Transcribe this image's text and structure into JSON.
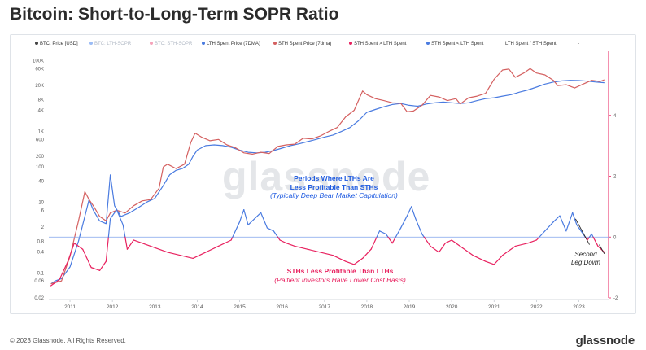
{
  "header": {
    "title": "Bitcoin: Short-to-Long-Term SOPR Ratio"
  },
  "legend": [
    {
      "label": "BTC: Price [USD]",
      "color": "#444444",
      "active": true
    },
    {
      "label": "BTC: LTH-SOPR",
      "color": "#9bbcf5",
      "active": false
    },
    {
      "label": "BTC: STH-SOPR",
      "color": "#f5a3ba",
      "active": false
    },
    {
      "label": "LTH Spent Price (7DMA)",
      "color": "#4a7be0",
      "active": true
    },
    {
      "label": "STH Spent Price (7dma)",
      "color": "#d46060",
      "active": true
    },
    {
      "label": "STH Spent > LTH Spent",
      "color": "#e8215f",
      "active": true
    },
    {
      "label": "STH Spent < LTH Spent",
      "color": "#4a7be0",
      "active": true
    },
    {
      "label": "LTH Spent / STH Spent",
      "color": "#ffffff",
      "active": true
    },
    {
      "label": "-",
      "color": "#ffffff",
      "active": true
    }
  ],
  "watermark": "glassnode",
  "annotations": {
    "blue_line1": "Periods Where LTHs Are",
    "blue_line2": "Less Profitable Than STHs",
    "blue_line3": "(Typically Deep Bear Market Capitulation)",
    "red_line1": "STHs Less Profitable Than LTHs",
    "red_line2": "(Paitient Investors Have Lower Cost Basis)",
    "black_line1": "Second",
    "black_line2": "Leg Down"
  },
  "footer": {
    "copyright": "© 2023 Glassnode. All Rights Reserved.",
    "logo": "glassnode"
  },
  "chart_data": {
    "type": "line",
    "title": "Bitcoin: Short-to-Long-Term SOPR Ratio",
    "x_axis": {
      "scale": "time",
      "range": [
        2010.5,
        2023.7
      ],
      "tick_labels": [
        "2011",
        "2012",
        "2013",
        "2014",
        "2015",
        "2016",
        "2017",
        "2018",
        "2019",
        "2020",
        "2021",
        "2022",
        "2023"
      ],
      "tick_values": [
        2011,
        2012,
        2013,
        2014,
        2015,
        2016,
        2017,
        2018,
        2019,
        2020,
        2021,
        2022,
        2023
      ]
    },
    "y_left": {
      "scale": "log",
      "unit": "USD",
      "range": [
        0.02,
        150000
      ],
      "tick_labels": [
        "0.02",
        "0.06",
        "0.1",
        "0.4",
        "0.8",
        "2",
        "6",
        "10",
        "40",
        "100",
        "200",
        "600",
        "1K",
        "4K",
        "8K",
        "20K",
        "60K",
        "100K"
      ],
      "tick_values": [
        0.02,
        0.06,
        0.1,
        0.4,
        0.8,
        2,
        6,
        10,
        40,
        100,
        200,
        600,
        1000,
        4000,
        8000,
        20000,
        60000,
        100000
      ]
    },
    "y_right": {
      "scale": "linear",
      "range": [
        -2,
        6
      ],
      "tick_labels": [
        "-2",
        "0",
        "2",
        "4"
      ],
      "tick_values": [
        -2,
        0,
        2,
        4
      ]
    },
    "series": [
      {
        "name": "LTH Spent Price (7DMA)",
        "color": "#4a7be0",
        "axis": "left",
        "points": [
          [
            2010.55,
            0.05
          ],
          [
            2010.65,
            0.06
          ],
          [
            2010.8,
            0.07
          ],
          [
            2011.0,
            0.15
          ],
          [
            2011.2,
            0.8
          ],
          [
            2011.35,
            4
          ],
          [
            2011.45,
            12
          ],
          [
            2011.55,
            6
          ],
          [
            2011.7,
            3
          ],
          [
            2011.85,
            2.5
          ],
          [
            2011.95,
            60
          ],
          [
            2012.05,
            8
          ],
          [
            2012.2,
            4
          ],
          [
            2012.4,
            5
          ],
          [
            2012.6,
            7
          ],
          [
            2012.8,
            10
          ],
          [
            2013.0,
            13
          ],
          [
            2013.2,
            30
          ],
          [
            2013.35,
            60
          ],
          [
            2013.5,
            80
          ],
          [
            2013.65,
            90
          ],
          [
            2013.8,
            120
          ],
          [
            2013.9,
            200
          ],
          [
            2014.0,
            300
          ],
          [
            2014.2,
            400
          ],
          [
            2014.4,
            420
          ],
          [
            2014.6,
            400
          ],
          [
            2014.8,
            360
          ],
          [
            2015.0,
            300
          ],
          [
            2015.2,
            260
          ],
          [
            2015.4,
            250
          ],
          [
            2015.6,
            260
          ],
          [
            2015.8,
            290
          ],
          [
            2016.0,
            340
          ],
          [
            2016.2,
            400
          ],
          [
            2016.4,
            450
          ],
          [
            2016.6,
            520
          ],
          [
            2016.8,
            600
          ],
          [
            2017.0,
            700
          ],
          [
            2017.2,
            800
          ],
          [
            2017.4,
            1000
          ],
          [
            2017.6,
            1300
          ],
          [
            2017.8,
            2000
          ],
          [
            2018.0,
            3500
          ],
          [
            2018.2,
            4200
          ],
          [
            2018.4,
            5000
          ],
          [
            2018.6,
            5800
          ],
          [
            2018.8,
            6200
          ],
          [
            2019.0,
            5500
          ],
          [
            2019.2,
            5200
          ],
          [
            2019.4,
            6000
          ],
          [
            2019.6,
            6500
          ],
          [
            2019.8,
            6800
          ],
          [
            2020.0,
            6500
          ],
          [
            2020.2,
            6200
          ],
          [
            2020.4,
            6500
          ],
          [
            2020.6,
            7500
          ],
          [
            2020.8,
            8500
          ],
          [
            2021.0,
            9000
          ],
          [
            2021.2,
            10000
          ],
          [
            2021.4,
            11000
          ],
          [
            2021.6,
            13000
          ],
          [
            2021.8,
            15000
          ],
          [
            2022.0,
            18000
          ],
          [
            2022.2,
            22000
          ],
          [
            2022.4,
            25000
          ],
          [
            2022.6,
            27000
          ],
          [
            2022.8,
            28000
          ],
          [
            2023.0,
            27500
          ],
          [
            2023.2,
            26500
          ],
          [
            2023.4,
            25000
          ],
          [
            2023.6,
            24000
          ]
        ]
      },
      {
        "name": "STH Spent Price (7dma)",
        "color": "#d46060",
        "axis": "left",
        "points": [
          [
            2010.55,
            0.05
          ],
          [
            2010.8,
            0.06
          ],
          [
            2011.0,
            0.3
          ],
          [
            2011.2,
            3
          ],
          [
            2011.35,
            20
          ],
          [
            2011.45,
            12
          ],
          [
            2011.55,
            8
          ],
          [
            2011.7,
            4
          ],
          [
            2011.85,
            3
          ],
          [
            2011.95,
            5
          ],
          [
            2012.1,
            6
          ],
          [
            2012.3,
            5
          ],
          [
            2012.5,
            8
          ],
          [
            2012.7,
            11
          ],
          [
            2012.9,
            12
          ],
          [
            2013.1,
            25
          ],
          [
            2013.2,
            100
          ],
          [
            2013.3,
            120
          ],
          [
            2013.5,
            90
          ],
          [
            2013.7,
            120
          ],
          [
            2013.85,
            500
          ],
          [
            2013.95,
            900
          ],
          [
            2014.1,
            700
          ],
          [
            2014.3,
            550
          ],
          [
            2014.5,
            600
          ],
          [
            2014.7,
            420
          ],
          [
            2014.9,
            350
          ],
          [
            2015.1,
            250
          ],
          [
            2015.3,
            230
          ],
          [
            2015.5,
            260
          ],
          [
            2015.7,
            240
          ],
          [
            2015.9,
            380
          ],
          [
            2016.1,
            420
          ],
          [
            2016.3,
            440
          ],
          [
            2016.5,
            650
          ],
          [
            2016.7,
            620
          ],
          [
            2016.9,
            750
          ],
          [
            2017.1,
            1000
          ],
          [
            2017.3,
            1300
          ],
          [
            2017.5,
            2600
          ],
          [
            2017.7,
            4000
          ],
          [
            2017.9,
            14000
          ],
          [
            2018.0,
            11000
          ],
          [
            2018.2,
            8500
          ],
          [
            2018.4,
            7500
          ],
          [
            2018.6,
            6500
          ],
          [
            2018.8,
            6300
          ],
          [
            2018.95,
            3600
          ],
          [
            2019.1,
            3800
          ],
          [
            2019.3,
            5500
          ],
          [
            2019.5,
            10500
          ],
          [
            2019.7,
            9500
          ],
          [
            2019.9,
            7500
          ],
          [
            2020.1,
            8500
          ],
          [
            2020.2,
            6000
          ],
          [
            2020.4,
            9000
          ],
          [
            2020.6,
            10000
          ],
          [
            2020.8,
            12000
          ],
          [
            2021.0,
            30000
          ],
          [
            2021.2,
            55000
          ],
          [
            2021.35,
            58000
          ],
          [
            2021.5,
            34000
          ],
          [
            2021.7,
            45000
          ],
          [
            2021.85,
            60000
          ],
          [
            2022.0,
            45000
          ],
          [
            2022.2,
            40000
          ],
          [
            2022.4,
            28000
          ],
          [
            2022.5,
            20000
          ],
          [
            2022.7,
            21000
          ],
          [
            2022.9,
            17000
          ],
          [
            2023.1,
            22000
          ],
          [
            2023.3,
            28000
          ],
          [
            2023.5,
            26000
          ],
          [
            2023.6,
            29000
          ]
        ]
      }
    ],
    "ratio_series": {
      "name": "LTH Spent / STH Spent",
      "axis": "right",
      "threshold": 0,
      "color_above": "#4a7be0",
      "color_below": "#e8215f",
      "points": [
        [
          2010.55,
          -1.6
        ],
        [
          2010.75,
          -1.4
        ],
        [
          2010.95,
          -0.8
        ],
        [
          2011.1,
          -0.2
        ],
        [
          2011.3,
          -0.4
        ],
        [
          2011.5,
          -1.0
        ],
        [
          2011.7,
          -1.1
        ],
        [
          2011.85,
          -0.8
        ],
        [
          2011.95,
          0.6
        ],
        [
          2012.1,
          0.9
        ],
        [
          2012.25,
          0.4
        ],
        [
          2012.35,
          -0.4
        ],
        [
          2012.5,
          -0.1
        ],
        [
          2012.7,
          -0.2
        ],
        [
          2012.9,
          -0.3
        ],
        [
          2013.1,
          -0.4
        ],
        [
          2013.3,
          -0.5
        ],
        [
          2013.6,
          -0.6
        ],
        [
          2013.9,
          -0.7
        ],
        [
          2014.2,
          -0.5
        ],
        [
          2014.5,
          -0.3
        ],
        [
          2014.8,
          -0.1
        ],
        [
          2015.0,
          0.5
        ],
        [
          2015.1,
          0.9
        ],
        [
          2015.2,
          0.4
        ],
        [
          2015.35,
          0.6
        ],
        [
          2015.5,
          0.8
        ],
        [
          2015.65,
          0.3
        ],
        [
          2015.8,
          0.2
        ],
        [
          2015.95,
          -0.1
        ],
        [
          2016.1,
          -0.2
        ],
        [
          2016.3,
          -0.3
        ],
        [
          2016.6,
          -0.4
        ],
        [
          2016.9,
          -0.5
        ],
        [
          2017.2,
          -0.6
        ],
        [
          2017.5,
          -0.8
        ],
        [
          2017.7,
          -0.9
        ],
        [
          2017.9,
          -0.7
        ],
        [
          2018.1,
          -0.4
        ],
        [
          2018.3,
          0.2
        ],
        [
          2018.45,
          0.1
        ],
        [
          2018.6,
          -0.2
        ],
        [
          2018.8,
          0.3
        ],
        [
          2018.95,
          0.7
        ],
        [
          2019.05,
          1.0
        ],
        [
          2019.15,
          0.6
        ],
        [
          2019.3,
          0.1
        ],
        [
          2019.5,
          -0.3
        ],
        [
          2019.7,
          -0.5
        ],
        [
          2019.85,
          -0.2
        ],
        [
          2020.0,
          -0.1
        ],
        [
          2020.2,
          -0.3
        ],
        [
          2020.5,
          -0.6
        ],
        [
          2020.8,
          -0.8
        ],
        [
          2021.0,
          -0.9
        ],
        [
          2021.2,
          -0.6
        ],
        [
          2021.5,
          -0.3
        ],
        [
          2021.8,
          -0.2
        ],
        [
          2022.0,
          -0.1
        ],
        [
          2022.2,
          0.2
        ],
        [
          2022.4,
          0.5
        ],
        [
          2022.55,
          0.7
        ],
        [
          2022.7,
          0.2
        ],
        [
          2022.85,
          0.8
        ],
        [
          2022.95,
          0.4
        ],
        [
          2023.05,
          0.2
        ],
        [
          2023.2,
          -0.1
        ],
        [
          2023.3,
          0.1
        ],
        [
          2023.45,
          -0.3
        ],
        [
          2023.6,
          -0.5
        ]
      ]
    }
  }
}
